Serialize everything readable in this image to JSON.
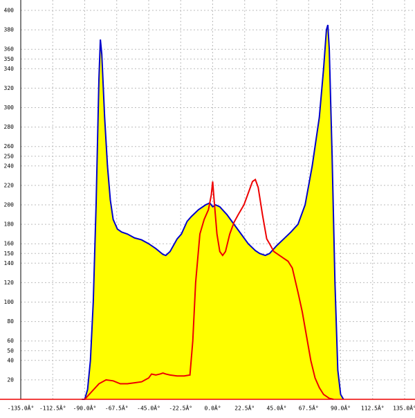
{
  "chart_data": {
    "type": "area",
    "xlim": [
      -135,
      135
    ],
    "ylim": [
      0,
      400
    ],
    "xticks": [
      {
        "value": -135,
        "label": "-135.0Â°"
      },
      {
        "value": -112.5,
        "label": "-112.5Â°"
      },
      {
        "value": -90,
        "label": "-90.0Â°"
      },
      {
        "value": -67.5,
        "label": "-67.5Â°"
      },
      {
        "value": -45,
        "label": "-45.0Â°"
      },
      {
        "value": -22.5,
        "label": "-22.5Â°"
      },
      {
        "value": 0,
        "label": "0.0Â°"
      },
      {
        "value": 22.5,
        "label": "22.5Â°"
      },
      {
        "value": 45,
        "label": "45.0Â°"
      },
      {
        "value": 67.5,
        "label": "67.5Â°"
      },
      {
        "value": 90,
        "label": "90.0Â°"
      },
      {
        "value": 112.5,
        "label": "112.5Â°"
      },
      {
        "value": 135,
        "label": "135.0Â°"
      }
    ],
    "yticks": [
      20,
      40,
      50,
      60,
      80,
      100,
      120,
      140,
      150,
      160,
      180,
      200,
      220,
      240,
      250,
      260,
      280,
      300,
      320,
      340,
      350,
      360,
      380,
      400
    ],
    "grid": true,
    "series": [
      {
        "fill": "#ffff00",
        "color": "#0000cc",
        "x": [
          -92,
          -90,
          -88,
          -86,
          -84,
          -82,
          -80,
          -79,
          -78,
          -76,
          -74,
          -72,
          -70,
          -67,
          -64,
          -60,
          -55,
          -50,
          -45,
          -40,
          -35,
          -33,
          -30,
          -25,
          -22,
          -18,
          -15,
          -10,
          -5,
          -2,
          0,
          2,
          5,
          10,
          15,
          20,
          25,
          30,
          33,
          37,
          40,
          45,
          50,
          55,
          60,
          65,
          70,
          75,
          78,
          80,
          81,
          82,
          84,
          86,
          88,
          90,
          92
        ],
        "values": [
          0,
          0,
          10,
          40,
          100,
          200,
          330,
          370,
          355,
          290,
          240,
          205,
          185,
          175,
          172,
          170,
          166,
          164,
          160,
          155,
          149,
          148,
          152,
          165,
          170,
          183,
          188,
          195,
          200,
          202,
          198,
          200,
          198,
          190,
          180,
          170,
          160,
          153,
          150,
          148,
          150,
          158,
          165,
          172,
          180,
          200,
          240,
          290,
          340,
          380,
          385,
          360,
          250,
          120,
          30,
          5,
          0
        ]
      },
      {
        "color": "#ee0000",
        "x": [
          -90,
          -85,
          -80,
          -75,
          -70,
          -65,
          -60,
          -55,
          -50,
          -45,
          -43,
          -40,
          -37,
          -35,
          -33,
          -30,
          -25,
          -20,
          -16,
          -14,
          -12,
          -9,
          -6,
          -3,
          -1,
          0,
          1,
          3,
          5,
          7,
          9,
          12,
          15,
          18,
          22,
          25,
          28,
          30,
          32,
          35,
          38,
          40,
          43,
          47,
          50,
          53,
          56,
          60,
          63,
          66,
          69,
          72,
          75,
          78,
          82,
          85
        ],
        "values": [
          0,
          8,
          16,
          20,
          19,
          16,
          16,
          17,
          18,
          22,
          26,
          25,
          26,
          27,
          26,
          25,
          24,
          24,
          25,
          60,
          120,
          170,
          185,
          195,
          210,
          224,
          205,
          170,
          152,
          148,
          152,
          170,
          182,
          190,
          200,
          212,
          224,
          226,
          218,
          190,
          165,
          160,
          152,
          148,
          145,
          142,
          135,
          110,
          90,
          65,
          40,
          22,
          12,
          5,
          1,
          0
        ]
      }
    ]
  }
}
